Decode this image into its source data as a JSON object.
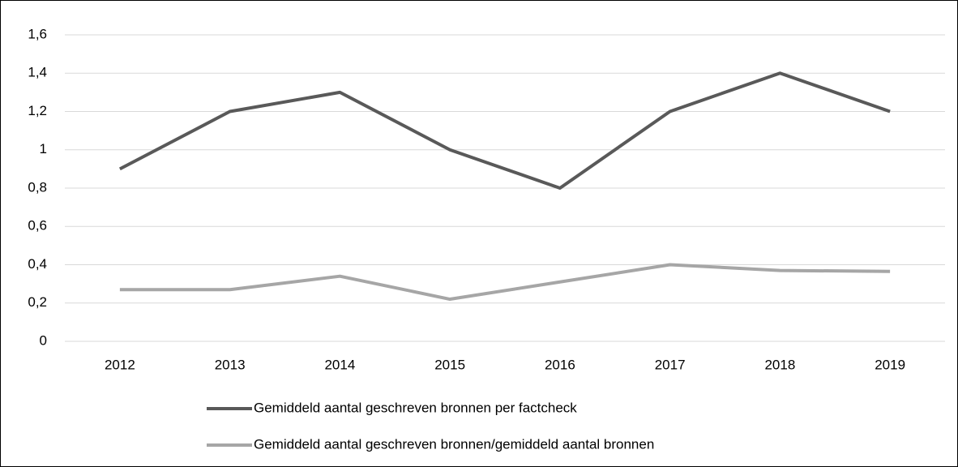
{
  "chart_data": {
    "type": "line",
    "categories": [
      "2012",
      "2013",
      "2014",
      "2015",
      "2016",
      "2017",
      "2018",
      "2019"
    ],
    "series": [
      {
        "name": "Gemiddeld aantal geschreven bronnen per factcheck",
        "color": "#595959",
        "values": [
          0.9,
          1.2,
          1.3,
          1.0,
          0.8,
          1.2,
          1.4,
          1.2
        ]
      },
      {
        "name": "Gemiddeld aantal geschreven bronnen/gemiddeld aantal bronnen",
        "color": "#a6a6a6",
        "values": [
          0.27,
          0.27,
          0.34,
          0.22,
          0.31,
          0.4,
          0.37,
          0.365
        ]
      }
    ],
    "ylim": [
      0,
      1.6
    ],
    "yticks": [
      0,
      {
        "value": 0.2,
        "label": "0,2"
      },
      {
        "value": 0.4,
        "label": "0,4"
      },
      {
        "value": 0.6,
        "label": "0,6"
      },
      {
        "value": 0.8,
        "label": "0,8"
      },
      1,
      {
        "value": 1.2,
        "label": "1,2"
      },
      {
        "value": 1.4,
        "label": "1,4"
      },
      {
        "value": 1.6,
        "label": "1,6"
      }
    ],
    "grid": true,
    "legend": "bottom"
  }
}
